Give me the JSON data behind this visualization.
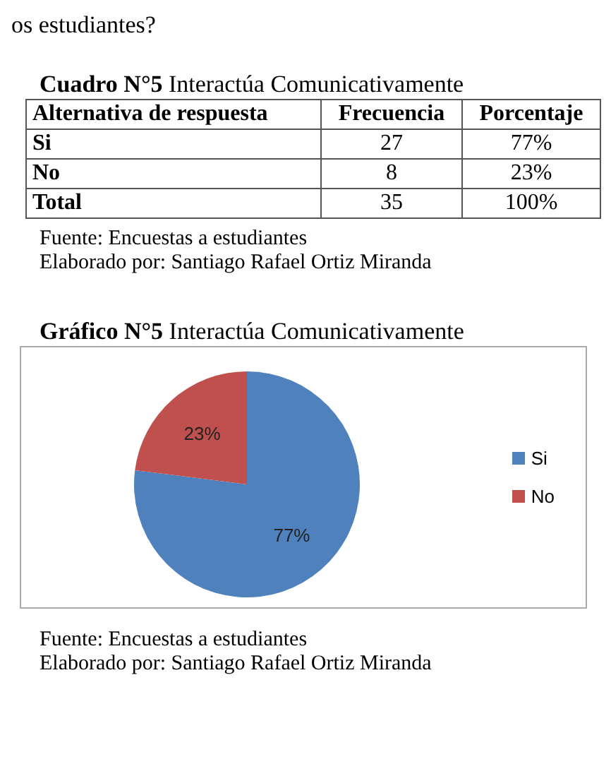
{
  "chart_data": [
    {
      "type": "other",
      "title": "Cuadro N°5 Interactúa Comunicativamente",
      "annotations": [
        "os estudiantes?",
        "Alternativa de respuesta",
        "Frecuencia",
        "Porcentaje",
        "Si",
        "27",
        "77%",
        "No",
        "8",
        "23%",
        "Total",
        "35",
        "100%",
        "Fuente: Encuestas a estudiantes",
        "Elaborado por: Santiago Rafael Ortiz Miranda"
      ]
    },
    {
      "type": "pie",
      "title": "Gráfico N°5 Interactúa Comunicativamente",
      "categories": [
        "Si",
        "No"
      ],
      "values": [
        77,
        23
      ],
      "colors": [
        "#4f81bd",
        "#c0504d"
      ],
      "value_labels": [
        "77%",
        "23%"
      ],
      "legend": "right",
      "annotations": [
        "Fuente: Encuestas a estudiantes",
        "Elaborado por: Santiago Rafael Ortiz Miranda"
      ]
    }
  ]
}
